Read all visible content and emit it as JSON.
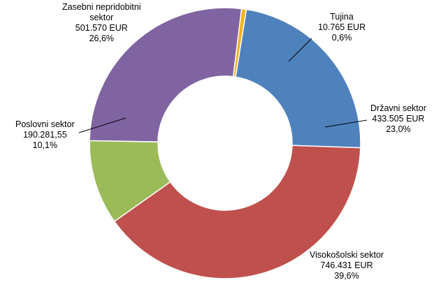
{
  "chart_data": {
    "type": "pie",
    "style": "donut",
    "slices": [
      {
        "name": "Tujina",
        "value": 10765,
        "value_label": "10.765 EUR",
        "percent_label": "0,6%",
        "color": "#f2b21a"
      },
      {
        "name": "Državni sektor",
        "value": 433505,
        "value_label": "433.505 EUR",
        "percent_label": "23,0%",
        "color": "#4f81bd"
      },
      {
        "name": "Visokošolski sektor",
        "value": 746431,
        "value_label": "746.431 EUR",
        "percent_label": "39,6%",
        "color": "#c0504d"
      },
      {
        "name": "Poslovni sektor",
        "value": 190281.55,
        "value_label": "190.281,55",
        "percent_label": "10,1%",
        "color": "#9bbb59"
      },
      {
        "name": "Zasebni nepridobitni sektor",
        "name_lines": [
          "Zasebni nepridobitni",
          "sektor"
        ],
        "value": 501570,
        "value_label": "501.570 EUR",
        "percent_label": "26,6%",
        "color": "#8064a2"
      }
    ]
  }
}
